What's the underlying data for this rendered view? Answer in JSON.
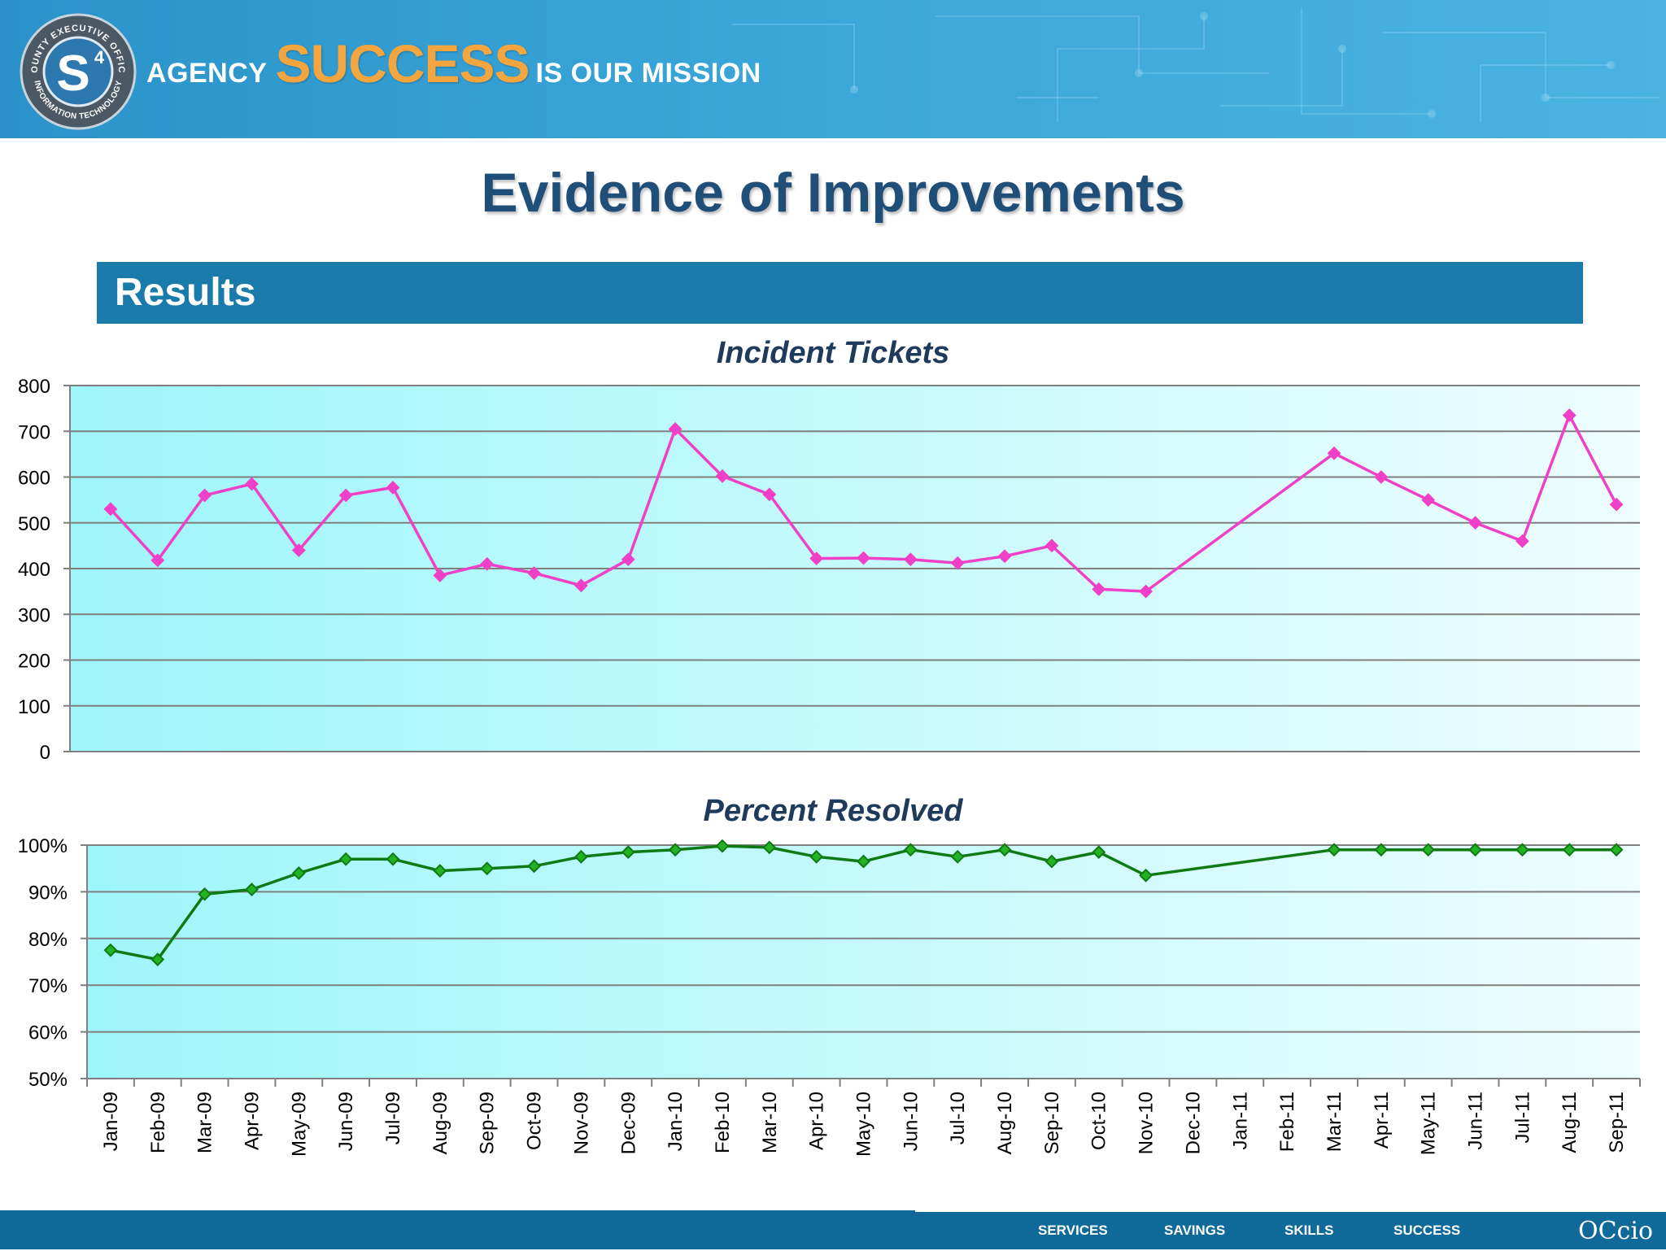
{
  "banner": {
    "tagline_agency": "AGENCY",
    "tagline_success": "SUCCESS",
    "tagline_mission": "IS OUR MISSION",
    "logo_text_top": "COUNTY EXECUTIVE OFFICE",
    "logo_text_bottom": "INFORMATION TECHNOLOGY",
    "logo_mark": "S",
    "logo_superscript": "4"
  },
  "page_title": "Evidence of Improvements",
  "section_header": "Results",
  "colors": {
    "incident_line": "#f040c8",
    "resolved_line": "#0f7a14",
    "resolved_marker": "#22b222",
    "header_bar": "#1a7bab",
    "footer": "#0f6a9a"
  },
  "chart_data": [
    {
      "type": "line",
      "title": "Incident Tickets",
      "categories": [
        "Jan-09",
        "Feb-09",
        "Mar-09",
        "Apr-09",
        "May-09",
        "Jun-09",
        "Jul-09",
        "Aug-09",
        "Sep-09",
        "Oct-09",
        "Nov-09",
        "Dec-09",
        "Jan-10",
        "Feb-10",
        "Mar-10",
        "Apr-10",
        "May-10",
        "Jun-10",
        "Jul-10",
        "Aug-10",
        "Sep-10",
        "Oct-10",
        "Nov-10",
        "Dec-10",
        "Jan-11",
        "Feb-11",
        "Mar-11",
        "Apr-11",
        "May-11",
        "Jun-11",
        "Jul-11",
        "Aug-11",
        "Sep-11"
      ],
      "values": [
        530,
        418,
        560,
        585,
        440,
        560,
        577,
        385,
        410,
        390,
        363,
        420,
        705,
        602,
        562,
        422,
        423,
        420,
        412,
        427,
        450,
        355,
        350,
        null,
        null,
        null,
        652,
        600,
        550,
        500,
        460,
        735,
        540
      ],
      "ylim": [
        0,
        800
      ],
      "yticks": [
        0,
        100,
        200,
        300,
        400,
        500,
        600,
        700,
        800
      ],
      "ytick_labels": [
        "0",
        "100",
        "200",
        "300",
        "400",
        "500",
        "600",
        "700",
        "800"
      ],
      "grid": true,
      "show_xtick_labels": false,
      "marker": "diamond"
    },
    {
      "type": "line",
      "title": "Percent Resolved",
      "categories": [
        "Jan-09",
        "Feb-09",
        "Mar-09",
        "Apr-09",
        "May-09",
        "Jun-09",
        "Jul-09",
        "Aug-09",
        "Sep-09",
        "Oct-09",
        "Nov-09",
        "Dec-09",
        "Jan-10",
        "Feb-10",
        "Mar-10",
        "Apr-10",
        "May-10",
        "Jun-10",
        "Jul-10",
        "Aug-10",
        "Sep-10",
        "Oct-10",
        "Nov-10",
        "Dec-10",
        "Jan-11",
        "Feb-11",
        "Mar-11",
        "Apr-11",
        "May-11",
        "Jun-11",
        "Jul-11",
        "Aug-11",
        "Sep-11"
      ],
      "values": [
        77.5,
        75.5,
        89.5,
        90.5,
        94,
        97,
        97,
        94.5,
        95,
        95.5,
        97.5,
        98.5,
        99,
        99.8,
        99.5,
        97.5,
        96.5,
        99,
        97.5,
        99,
        96.5,
        98.5,
        93.5,
        null,
        null,
        null,
        99,
        99,
        99,
        99,
        99,
        99,
        99
      ],
      "ylim": [
        50,
        100
      ],
      "yticks": [
        50,
        60,
        70,
        80,
        90,
        100
      ],
      "ytick_labels": [
        "50%",
        "60%",
        "70%",
        "80%",
        "90%",
        "100%"
      ],
      "grid": true,
      "show_xtick_labels": true,
      "marker": "diamond"
    }
  ],
  "footer": {
    "nav": [
      "SERVICES",
      "SAVINGS",
      "SKILLS",
      "SUCCESS"
    ],
    "logo_text": "OCcio"
  }
}
